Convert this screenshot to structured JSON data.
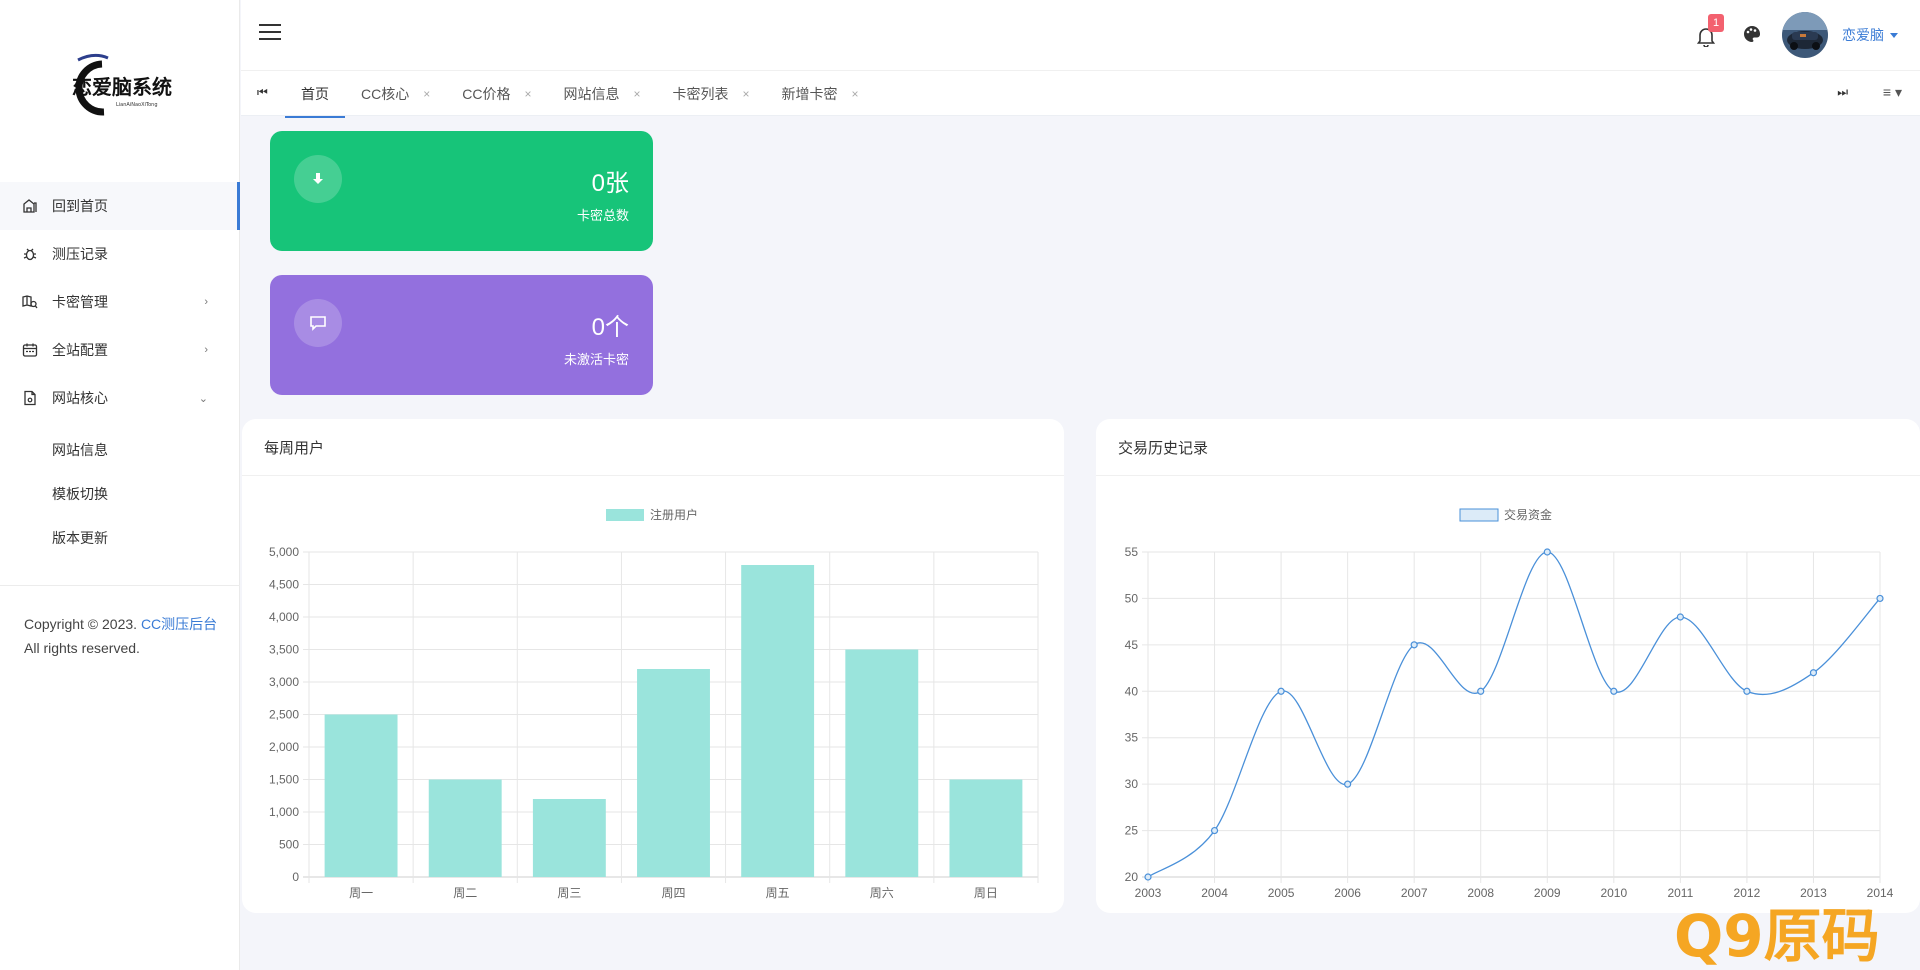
{
  "app": {
    "logo_text": "恋爱脑系统",
    "logo_subtext": "LianAiNaoXiTong"
  },
  "sidebar": {
    "items": [
      {
        "label": "回到首页",
        "icon": "home-icon"
      },
      {
        "label": "测压记录",
        "icon": "bug-icon"
      },
      {
        "label": "卡密管理",
        "icon": "map-search-icon",
        "arrow": "›"
      },
      {
        "label": "全站配置",
        "icon": "calendar-icon",
        "arrow": "›"
      },
      {
        "label": "网站核心",
        "icon": "file-settings-icon",
        "arrow": "⌄"
      }
    ],
    "subitems": [
      "网站信息",
      "模板切换",
      "版本更新"
    ],
    "copyright_prefix": "Copyright © 2023.",
    "copyright_link": "CC测压后台",
    "copyright_suffix": "All rights reserved."
  },
  "header": {
    "menu_icon": "hamburger-menu-icon",
    "notification_count": "1",
    "username": "恋爱脑"
  },
  "tabs": {
    "items": [
      {
        "label": "首页",
        "closable": false
      },
      {
        "label": "CC核心",
        "closable": true
      },
      {
        "label": "CC价格",
        "closable": true
      },
      {
        "label": "网站信息",
        "closable": true
      },
      {
        "label": "卡密列表",
        "closable": true
      },
      {
        "label": "新增卡密",
        "closable": true
      }
    ],
    "close_glyph": "×",
    "prev_glyph": "⏮",
    "next_glyph": "⏭",
    "menu_glyph": "≡ ▾"
  },
  "stats": [
    {
      "value": "0张",
      "label": "卡密总数",
      "color": "#17c479",
      "icon": "download-icon"
    },
    {
      "value": "0个",
      "label": "未激活卡密",
      "color": "#9370de",
      "icon": "message-icon"
    }
  ],
  "cards": {
    "weekly_title": "每周用户",
    "trade_title": "交易历史记录"
  },
  "chart_data": [
    {
      "type": "bar",
      "legend": "注册用户",
      "categories": [
        "周一",
        "周二",
        "周三",
        "周四",
        "周五",
        "周六",
        "周日"
      ],
      "series": [
        {
          "name": "注册用户",
          "values": [
            2500,
            1500,
            1200,
            3200,
            4800,
            3500,
            1500
          ]
        }
      ],
      "ylim": [
        0,
        5000
      ],
      "yticks": [
        0,
        500,
        1000,
        1500,
        2000,
        2500,
        3000,
        3500,
        4000,
        4500,
        5000
      ],
      "ytick_labels": [
        "0",
        "500",
        "1,000",
        "1,500",
        "2,000",
        "2,500",
        "3,000",
        "3,500",
        "4,000",
        "4,500",
        "5,000"
      ],
      "color": "#9ae4dc",
      "grid": true,
      "legend_position": "top"
    },
    {
      "type": "line",
      "legend": "交易资金",
      "x": [
        "2003",
        "2004",
        "2005",
        "2006",
        "2007",
        "2008",
        "2009",
        "2010",
        "2011",
        "2012",
        "2013",
        "2014"
      ],
      "series": [
        {
          "name": "交易资金",
          "values": [
            20,
            25,
            40,
            30,
            45,
            40,
            55,
            40,
            48,
            40,
            42,
            50
          ]
        }
      ],
      "ylim": [
        20,
        55
      ],
      "yticks": [
        20,
        25,
        30,
        35,
        40,
        45,
        50,
        55
      ],
      "color": "#4a90d9",
      "fill": "#dcebf8",
      "grid": true,
      "legend_position": "top"
    }
  ],
  "watermark": {
    "text": "Q9原码"
  }
}
